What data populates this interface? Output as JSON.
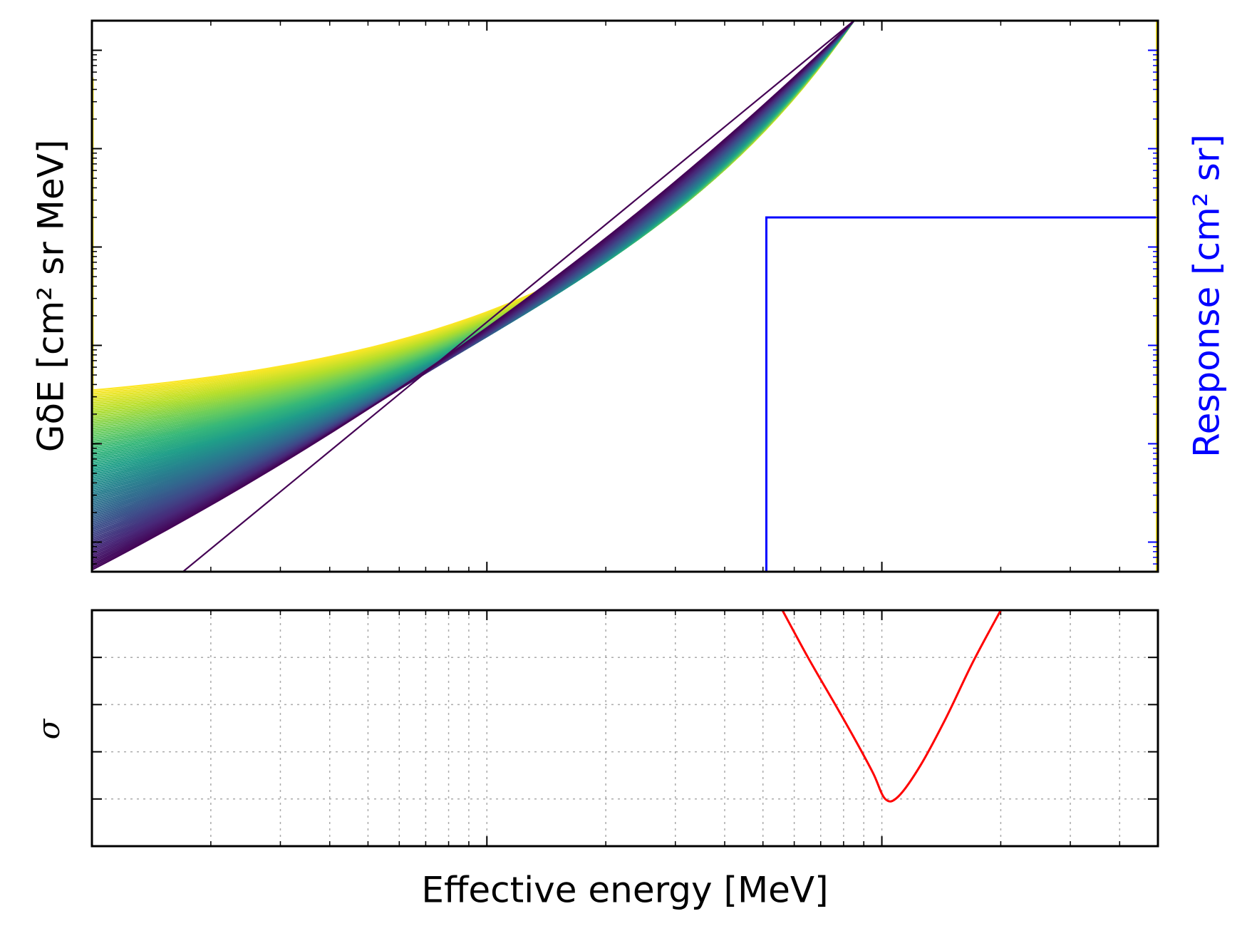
{
  "chart_data": [
    {
      "type": "line",
      "panel": "top",
      "title": "",
      "xlabel": "Effective energy [MeV]",
      "ylabel": "GδE [cm² sr MeV]",
      "ylabel_right": "Response [cm² sr]",
      "x_scale": "log",
      "y_scale": "log",
      "xlim": [
        0.1,
        50
      ],
      "ylim": [
        0.05,
        20000
      ],
      "y_right_scale": "log",
      "colormap": "viridis",
      "series_family": {
        "count": 100,
        "description_points": [
          {
            "index": 0,
            "color": "#440154",
            "x": [
              0.17,
              8.5
            ],
            "y": [
              0.05,
              20000
            ]
          },
          {
            "index": 99,
            "color": "#fde725",
            "x": [
              0.1,
              8.5
            ],
            "y": [
              3.5,
              20000
            ]
          }
        ]
      },
      "response_step": {
        "color": "#0000ff",
        "x": [
          5.1,
          5.1,
          50
        ],
        "y": [
          0.05,
          200,
          200
        ]
      },
      "grid": false,
      "legend": "none"
    },
    {
      "type": "line",
      "panel": "bottom",
      "title": "",
      "xlabel": "Effective energy [MeV]",
      "ylabel": "σ",
      "x_scale": "log",
      "xlim": [
        0.1,
        50
      ],
      "ylim": [
        0,
        5
      ],
      "yticks": [
        1,
        2,
        3,
        4
      ],
      "series": [
        {
          "color": "#ff0000",
          "x": [
            5.6,
            6.5,
            7.5,
            8.5,
            9.5,
            10.2,
            11.0,
            12.5,
            14.5,
            17.0,
            20.0
          ],
          "y": [
            5.0,
            4.0,
            3.1,
            2.3,
            1.55,
            1.0,
            1.05,
            1.7,
            2.7,
            3.9,
            5.0
          ]
        }
      ],
      "grid": true,
      "legend": "none"
    }
  ]
}
